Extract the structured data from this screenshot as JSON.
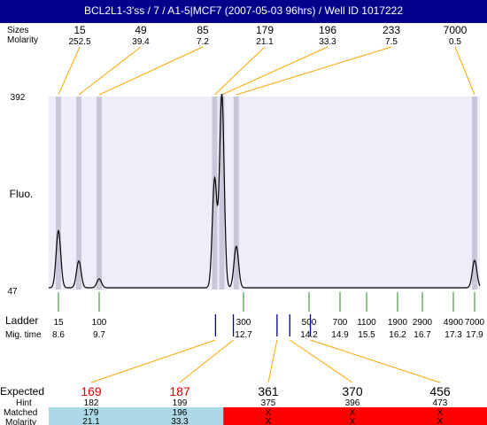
{
  "title": "BCL2L1-3'ss / 7 / A1-5|MCF7 (2007-05-03 96hrs) / Well ID 1017222",
  "top_labels": {
    "sizes": "Sizes",
    "molarity": "Molarity"
  },
  "chart_data": {
    "type": "line",
    "y_axis_label": "Fluo.",
    "y_ticks": [
      "392",
      "47"
    ],
    "ylim": [
      47,
      392
    ],
    "peaks": [
      {
        "size": "15",
        "molarity": "252.5",
        "height": 149,
        "ladder_mig": 8.6
      },
      {
        "size": "49",
        "molarity": "39.4",
        "height": 95,
        "ladder_mig": 9.15
      },
      {
        "size": "85",
        "molarity": "7.2",
        "height": 63,
        "ladder_mig": 9.7
      },
      {
        "size": "179",
        "molarity": "21.1",
        "height": 241,
        "ladder_mig": 12.1
      },
      {
        "size": "196",
        "molarity": "33.3",
        "height": 392,
        "ladder_mig": 12.25
      },
      {
        "size": "233",
        "molarity": "7.5",
        "height": 121,
        "ladder_mig": 12.55
      },
      {
        "size": "7000",
        "molarity": "0.5",
        "height": 96,
        "ladder_mig": 17.9
      }
    ],
    "ladder": {
      "label": "Ladder",
      "mig_label": "Mig. time",
      "sizes": [
        "15",
        "100",
        "300",
        "500",
        "700",
        "1100",
        "1900",
        "2900",
        "4900",
        "7000"
      ],
      "mig_times": [
        "8.6",
        "9.7",
        "12.7",
        "14.2",
        "14.9",
        "15.5",
        "16.2",
        "16.7",
        "17.3",
        "17.9"
      ],
      "mig_values": [
        8.6,
        9.7,
        12.7,
        14.2,
        14.9,
        15.5,
        16.2,
        16.7,
        17.3,
        17.9
      ]
    },
    "expected_table": {
      "row_labels": {
        "expected": "Expected",
        "hint": "Hint",
        "matched": "Matched",
        "molarity": "Molarity"
      },
      "columns": [
        {
          "expected": "169",
          "hint": "182",
          "matched": "179",
          "molarity": "21.1",
          "found": true,
          "mig": 12.1
        },
        {
          "expected": "187",
          "hint": "199",
          "matched": "196",
          "molarity": "33.3",
          "found": true,
          "mig": 12.25
        },
        {
          "expected": "361",
          "hint": "375",
          "matched": "X",
          "molarity": "X",
          "found": false,
          "mig": 13.65
        },
        {
          "expected": "370",
          "hint": "396",
          "matched": "X",
          "molarity": "X",
          "found": false,
          "mig": 13.8
        },
        {
          "expected": "456",
          "hint": "473",
          "matched": "X",
          "molarity": "X",
          "found": false,
          "mig": 14.15
        }
      ]
    }
  },
  "colors": {
    "title_bg": "#00008b",
    "plot_bg": "#eeeefa",
    "peak_band": "#c8c8d8",
    "connector": "#ffa500",
    "ladder_tick": "#228b22",
    "hint_tick": "#00008b",
    "expected_found": "#e00000",
    "matched_ok": "#add8e6",
    "matched_missing": "#ff0000"
  }
}
